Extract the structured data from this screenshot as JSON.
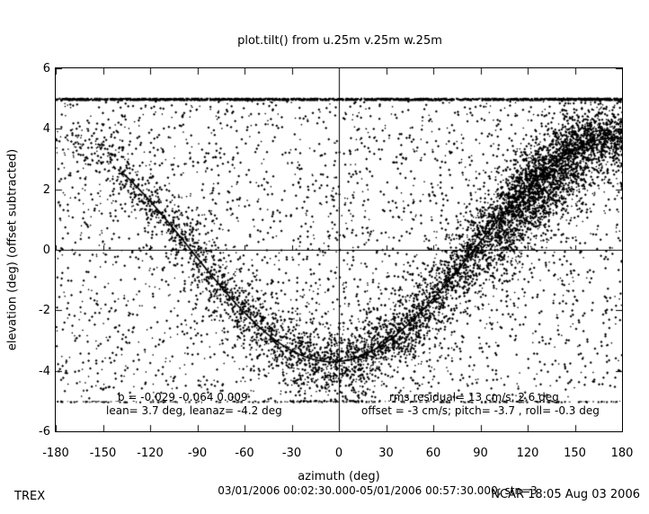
{
  "page": {
    "background": "#ffffff",
    "ink": "#000000"
  },
  "chart_data": {
    "type": "scatter",
    "title": "plot.tilt() from u.25m v.25m w.25m",
    "xlabel": "azimuth (deg)",
    "ylabel": "elevation (deg)  (offset subtracted)",
    "xlim": [
      -180,
      180
    ],
    "ylim": [
      -6,
      6
    ],
    "x_ticks": [
      -180,
      -150,
      -120,
      -90,
      -60,
      -30,
      0,
      30,
      60,
      90,
      120,
      150,
      180
    ],
    "y_ticks": [
      6,
      4,
      2,
      0,
      -2,
      -4,
      -6
    ],
    "grid": "zero-axes-only",
    "legend": "none",
    "series_description": "Dense cloud of small black diamond points: uniform background scatter plus a dense band following the fitted cosine tilt curve; samples clipped at elevation = +5 and -5 deg form horizontal bands across the full azimuth range",
    "fit_curve": {
      "model": "elevation = -lean * cos(azimuth - leanaz)",
      "lean_deg": 3.7,
      "leanaz_deg": -4.2,
      "drawn_azimuth_range": [
        -138,
        180
      ]
    },
    "clip_bands": [
      {
        "elevation_deg": 5,
        "density": "dense"
      },
      {
        "elevation_deg": -5,
        "density": "sparse"
      }
    ],
    "annotations": {
      "fit_left_1": "b = -0.029 -0.064  0.009",
      "fit_left_2": "lean= 3.7 deg, leanaz= -4.2 deg",
      "fit_right_1": "rms residual= 13 cm/s, 2.6 deg",
      "fit_right_2": "offset = -3 cm/s; pitch= -3.7 , roll= -0.3 deg"
    },
    "scatter_model": {
      "seed": 42,
      "background_points": 2700,
      "band_points": 4800,
      "band_az_bias_exponent": 0.6,
      "cluster_points": 1400,
      "cluster_center_az_deg": 125,
      "clip_top_points": 1400,
      "clip_bottom_points": 300
    }
  },
  "footer": {
    "left": "TREX",
    "center": "03/01/2006 00:02:30.000-05/01/2006 00:57:30.000; stn=3",
    "right": "NCAR 18:05 Aug 03 2006"
  }
}
